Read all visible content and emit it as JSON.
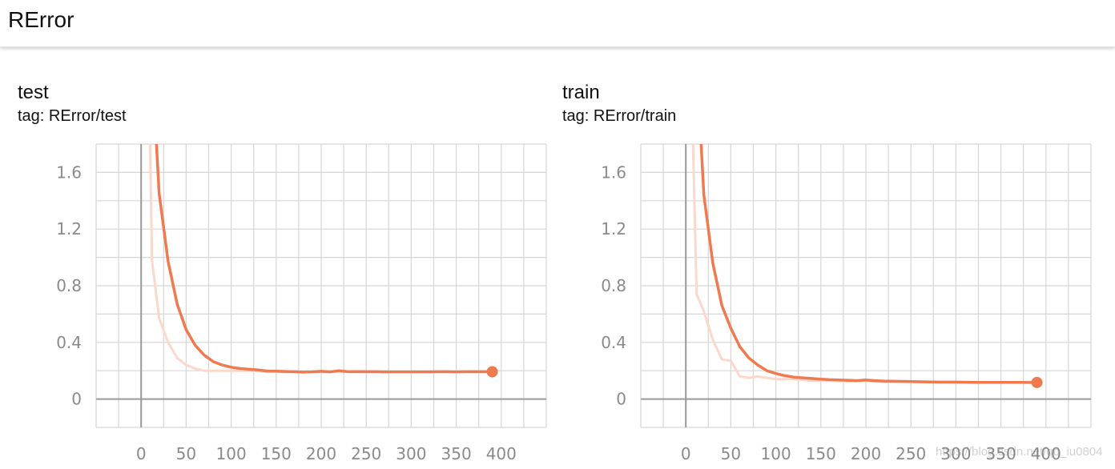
{
  "header": {
    "title": "RError"
  },
  "watermark": "https://blog.csdn.net/qq_iu0804",
  "colors": {
    "line": "#ef7a4f",
    "raw_line": "#fbd8cb",
    "grid": "#d6d6d6",
    "axis": "#9a9a9a"
  },
  "chart_data": [
    {
      "type": "line",
      "title": "test",
      "tag": "tag: RError/test",
      "xlim": [
        -50,
        450
      ],
      "ylim": [
        -0.2,
        1.8
      ],
      "x_ticks": [
        0,
        50,
        100,
        150,
        200,
        250,
        300,
        350,
        400
      ],
      "y_ticks": [
        0,
        0.4,
        0.8,
        1.2,
        1.6
      ],
      "y_tick_labels": [
        "0",
        "0.4",
        "0.8",
        "1.2",
        "1.6"
      ],
      "grid": true,
      "series": [
        {
          "role": "smoothed",
          "x": [
            17,
            20,
            30,
            40,
            50,
            60,
            70,
            80,
            90,
            100,
            110,
            120,
            130,
            140,
            150,
            160,
            170,
            180,
            190,
            200,
            210,
            220,
            230,
            240,
            250,
            260,
            270,
            280,
            290,
            300,
            310,
            320,
            330,
            340,
            350,
            360,
            370,
            380,
            390
          ],
          "y": [
            1.8,
            1.45,
            0.97,
            0.67,
            0.49,
            0.38,
            0.31,
            0.265,
            0.24,
            0.225,
            0.215,
            0.21,
            0.205,
            0.198,
            0.197,
            0.195,
            0.193,
            0.19,
            0.192,
            0.196,
            0.192,
            0.2,
            0.193,
            0.194,
            0.193,
            0.193,
            0.192,
            0.192,
            0.192,
            0.192,
            0.192,
            0.192,
            0.193,
            0.193,
            0.192,
            0.193,
            0.193,
            0.193,
            0.193
          ]
        },
        {
          "role": "raw",
          "x": [
            10,
            12,
            20,
            30,
            40,
            50,
            60,
            70,
            80,
            90,
            100,
            120,
            140,
            160,
            180,
            200,
            220,
            240,
            260,
            280,
            300,
            320,
            340,
            360,
            380,
            390
          ],
          "y": [
            1.8,
            0.98,
            0.57,
            0.4,
            0.29,
            0.24,
            0.215,
            0.2,
            0.2,
            0.2,
            0.2,
            0.2,
            0.195,
            0.19,
            0.19,
            0.19,
            0.195,
            0.19,
            0.19,
            0.19,
            0.19,
            0.19,
            0.19,
            0.19,
            0.19,
            0.19
          ]
        }
      ],
      "end_point": {
        "x": 390,
        "y": 0.193
      }
    },
    {
      "type": "line",
      "title": "train",
      "tag": "tag: RError/train",
      "xlim": [
        -50,
        450
      ],
      "ylim": [
        -0.2,
        1.8
      ],
      "x_ticks": [
        0,
        50,
        100,
        150,
        200,
        250,
        300,
        350,
        400
      ],
      "y_ticks": [
        0,
        0.4,
        0.8,
        1.2,
        1.6
      ],
      "y_tick_labels": [
        "0",
        "0.4",
        "0.8",
        "1.2",
        "1.6"
      ],
      "grid": true,
      "series": [
        {
          "role": "smoothed",
          "x": [
            17,
            20,
            30,
            40,
            50,
            60,
            70,
            80,
            90,
            100,
            110,
            120,
            130,
            140,
            150,
            160,
            170,
            180,
            190,
            200,
            210,
            220,
            240,
            260,
            280,
            300,
            320,
            340,
            360,
            380,
            390
          ],
          "y": [
            1.8,
            1.44,
            0.96,
            0.66,
            0.5,
            0.37,
            0.29,
            0.24,
            0.2,
            0.18,
            0.165,
            0.155,
            0.15,
            0.145,
            0.14,
            0.137,
            0.135,
            0.133,
            0.13,
            0.135,
            0.13,
            0.127,
            0.125,
            0.122,
            0.12,
            0.12,
            0.118,
            0.118,
            0.118,
            0.117,
            0.117
          ]
        },
        {
          "role": "raw",
          "x": [
            8,
            12,
            20,
            30,
            40,
            50,
            60,
            70,
            80,
            90,
            100,
            110,
            120,
            140,
            160,
            180,
            200,
            220,
            240,
            260,
            280,
            300,
            320,
            340,
            360,
            380,
            390
          ],
          "y": [
            1.8,
            0.74,
            0.62,
            0.42,
            0.28,
            0.27,
            0.16,
            0.15,
            0.16,
            0.15,
            0.14,
            0.14,
            0.14,
            0.13,
            0.13,
            0.125,
            0.13,
            0.12,
            0.12,
            0.12,
            0.118,
            0.118,
            0.118,
            0.117,
            0.117,
            0.117,
            0.117
          ]
        }
      ],
      "end_point": {
        "x": 390,
        "y": 0.117
      }
    }
  ]
}
